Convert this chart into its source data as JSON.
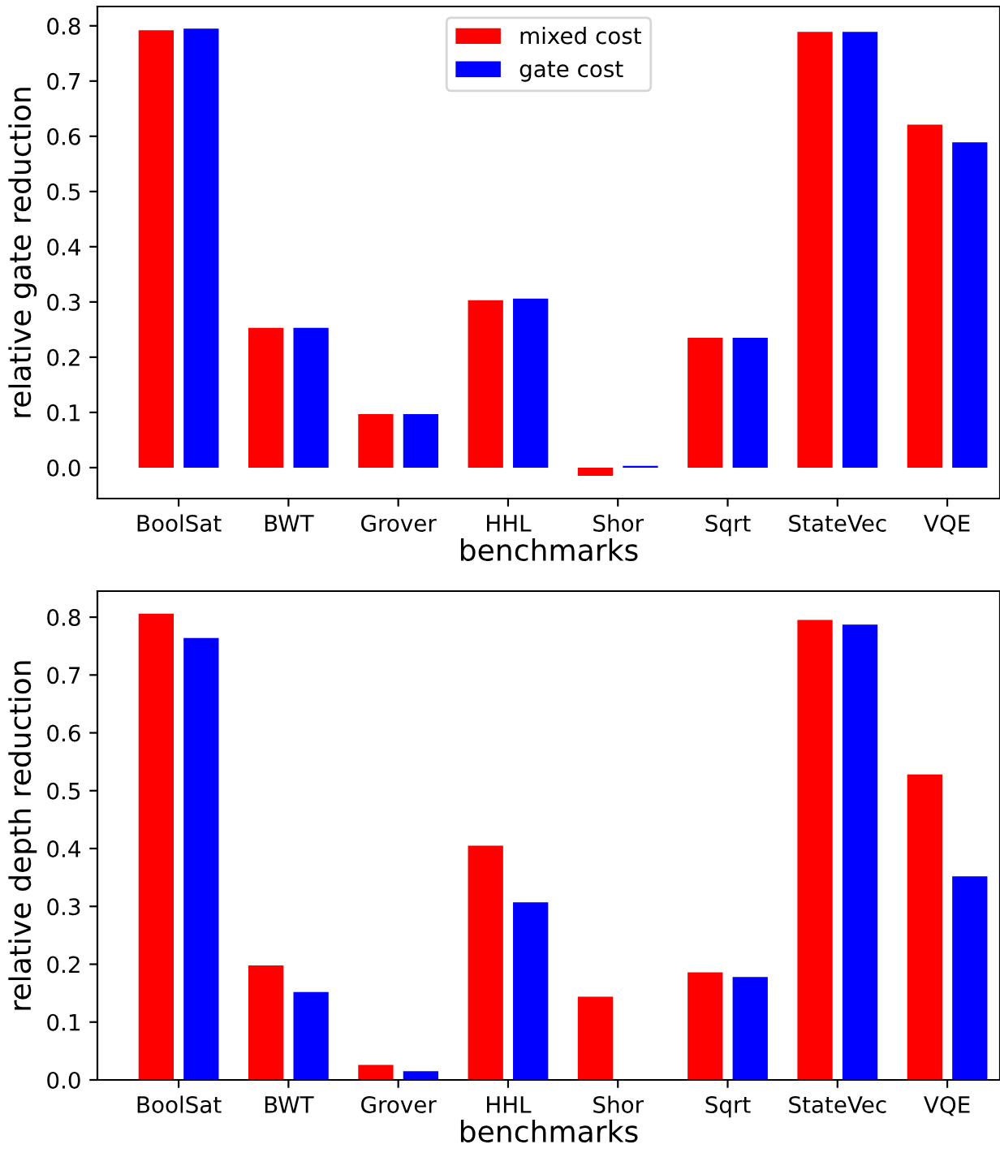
{
  "chart_data": [
    {
      "type": "bar",
      "xlabel": "benchmarks",
      "ylabel": "relative gate reduction",
      "categories": [
        "BoolSat",
        "BWT",
        "Grover",
        "HHL",
        "Shor",
        "Sqrt",
        "StateVec",
        "VQE"
      ],
      "series": [
        {
          "name": "mixed cost",
          "color": "#ff0000",
          "values": [
            0.792,
            0.253,
            0.097,
            0.303,
            -0.015,
            0.235,
            0.789,
            0.621
          ]
        },
        {
          "name": "gate cost",
          "color": "#0000ff",
          "values": [
            0.795,
            0.253,
            0.097,
            0.306,
            0.003,
            0.235,
            0.789,
            0.589
          ]
        }
      ],
      "ylim": [
        -0.056,
        0.835
      ],
      "yticks": [
        {
          "value": 0,
          "label": "0.0"
        },
        0.1,
        0.2,
        0.3,
        0.4,
        0.5,
        0.6,
        0.7,
        0.8
      ],
      "legend": "top",
      "grid": false
    },
    {
      "type": "bar",
      "xlabel": "benchmarks",
      "ylabel": "relative depth reduction",
      "categories": [
        "BoolSat",
        "BWT",
        "Grover",
        "HHL",
        "Shor",
        "Sqrt",
        "StateVec",
        "VQE"
      ],
      "series": [
        {
          "color": "#ff0000",
          "values": [
            0.806,
            0.198,
            0.026,
            0.405,
            0.144,
            0.186,
            0.795,
            0.528
          ]
        },
        {
          "color": "#0000ff",
          "values": [
            0.764,
            0.152,
            0.015,
            0.307,
            0.0,
            0.178,
            0.787,
            0.352
          ]
        }
      ],
      "ylim": [
        0.0,
        0.845
      ],
      "yticks": [
        {
          "value": 0,
          "label": "0.0"
        },
        0.1,
        0.2,
        0.3,
        0.4,
        0.5,
        0.6,
        0.7,
        0.8
      ],
      "legend": false,
      "grid": false
    }
  ]
}
